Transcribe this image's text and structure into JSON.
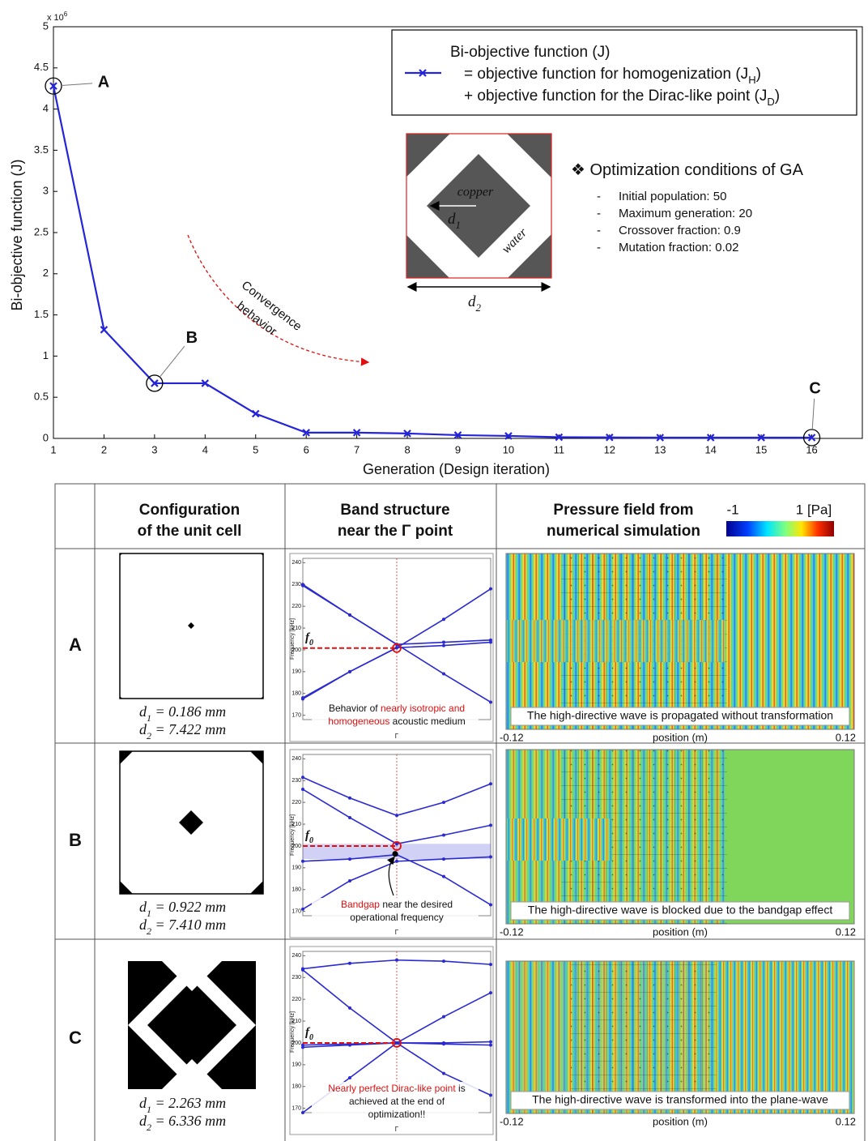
{
  "chart_data": {
    "type": "line",
    "x": [
      1,
      2,
      3,
      4,
      5,
      6,
      7,
      8,
      9,
      10,
      11,
      12,
      13,
      14,
      15,
      16
    ],
    "series": [
      {
        "name": "Bi-objective function (J)",
        "color": "#2424d8",
        "values": [
          4.28,
          1.32,
          0.67,
          0.67,
          0.3,
          0.07,
          0.07,
          0.06,
          0.04,
          0.03,
          0.015,
          0.012,
          0.01,
          0.01,
          0.01,
          0.01
        ]
      }
    ],
    "xlim": [
      1,
      17
    ],
    "xticks": [
      1,
      2,
      3,
      4,
      5,
      6,
      7,
      8,
      9,
      10,
      11,
      12,
      13,
      14,
      15,
      16
    ],
    "ylim": [
      0,
      5
    ],
    "yticks": [
      0,
      0.5,
      1,
      1.5,
      2,
      2.5,
      3,
      3.5,
      4,
      4.5,
      5
    ],
    "y_multiplier": {
      "base": "x 10",
      "exponent": "6"
    },
    "xlabel": "Generation (Design iteration)",
    "ylabel": "Bi-objective function (J)",
    "legend_lines": [
      [
        {
          "text": "= objective function for homogenization (J"
        },
        {
          "text": "H",
          "sub": true
        },
        {
          "text": ")"
        }
      ],
      [
        {
          "text": "+ objective function for the Dirac-like point (J"
        },
        {
          "text": "D",
          "sub": true
        },
        {
          "text": ")"
        }
      ]
    ],
    "annotations": [
      {
        "text": "A",
        "x": 1
      },
      {
        "text": "B",
        "x": 3
      },
      {
        "text": "C",
        "x": 16
      }
    ],
    "arrow_label": [
      "Convergence",
      "behavior"
    ]
  },
  "inset": {
    "inner_material": "copper",
    "outer_material": "water",
    "d1": [
      {
        "text": "d"
      },
      {
        "text": "1",
        "sub": true
      }
    ],
    "d2": [
      {
        "text": "d"
      },
      {
        "text": "2",
        "sub": true
      }
    ]
  },
  "conditions": {
    "bullet": "❖",
    "title": "Optimization conditions of GA",
    "dash": "-",
    "items": [
      "Initial population: 50",
      "Maximum generation: 20",
      "Crossover fraction: 0.9",
      "Mutation fraction: 0.02"
    ]
  },
  "table": {
    "header": [
      [
        "Configuration",
        "of the unit cell"
      ],
      [
        "Band structure",
        "near the Γ point"
      ],
      [
        "Pressure field from",
        "numerical simulation"
      ]
    ],
    "colorbar": {
      "min_label": "-1",
      "max_label": "1 [Pa]"
    },
    "rows": [
      {
        "label": "A",
        "d1": [
          {
            "text": "d"
          },
          {
            "text": "1",
            "sub": true
          },
          {
            "text": " = 0.186 mm"
          }
        ],
        "d2": [
          {
            "text": "d"
          },
          {
            "text": "2",
            "sub": true
          },
          {
            "text": " = 7.422 mm"
          }
        ],
        "band": {
          "ylabel": "Frequency [kHz]",
          "xlabel": "Γ",
          "ylim": [
            168,
            242
          ],
          "yticks": [
            170,
            180,
            190,
            200,
            210,
            220,
            230,
            240
          ],
          "f0": {
            "label": [
              {
                "text": "f"
              },
              {
                "text": "0",
                "sub": true
              }
            ],
            "value": 200.8
          },
          "branches": [
            [
              229.5,
              216,
              202.5,
              189,
              176
            ],
            [
              178,
              190,
              201,
              214,
              228
            ],
            [
              230,
              216,
              202.5,
              203.5,
              204.5
            ],
            [
              177.5,
              190,
              201,
              202,
              203.5
            ]
          ],
          "note": [
            [
              {
                "text": "Behavior of "
              },
              {
                "text": "nearly isotropic and",
                "color": "#e01010"
              }
            ],
            [
              {
                "text": "homogeneous",
                "color": "#e01010"
              },
              {
                "text": " acoustic medium"
              }
            ]
          ]
        },
        "caption": "The high-directive wave is propagated without transformation",
        "position_axis": {
          "min": "-0.12",
          "label": "position (m)",
          "max": "0.12"
        }
      },
      {
        "label": "B",
        "d1": [
          {
            "text": "d"
          },
          {
            "text": "1",
            "sub": true
          },
          {
            "text": " = 0.922 mm"
          }
        ],
        "d2": [
          {
            "text": "d"
          },
          {
            "text": "2",
            "sub": true
          },
          {
            "text": " = 7.410 mm"
          }
        ],
        "band": {
          "ylabel": "Frequency [kHz]",
          "xlabel": "Γ",
          "ylim": [
            168,
            242
          ],
          "yticks": [
            170,
            180,
            190,
            200,
            210,
            220,
            230,
            240
          ],
          "f0": {
            "label": [
              {
                "text": "f"
              },
              {
                "text": "0",
                "sub": true
              }
            ],
            "value": 200
          },
          "bandgap": [
            194,
            201
          ],
          "branches": [
            [
              231.5,
              222,
              214,
              220,
              228.5
            ],
            [
              226,
              213,
              201,
              205,
              209.5
            ],
            [
              193,
              194,
              196,
              186,
              173
            ],
            [
              171,
              184,
              193,
              194,
              195
            ]
          ],
          "note": [
            [
              {
                "text": "Bandgap",
                "color": "#e01010"
              },
              {
                "text": " near the desired"
              }
            ],
            [
              {
                "text": "operational frequency"
              }
            ]
          ]
        },
        "caption": "The high-directive wave is blocked due to the bandgap effect",
        "position_axis": {
          "min": "-0.12",
          "label": "position (m)",
          "max": "0.12"
        }
      },
      {
        "label": "C",
        "d1": [
          {
            "text": "d"
          },
          {
            "text": "1",
            "sub": true
          },
          {
            "text": " = 2.263 mm"
          }
        ],
        "d2": [
          {
            "text": "d"
          },
          {
            "text": "2",
            "sub": true
          },
          {
            "text": " = 6.336 mm"
          }
        ],
        "band": {
          "ylabel": "Frequency [kHz]",
          "xlabel": "Γ",
          "ylim": [
            168,
            242
          ],
          "yticks": [
            170,
            180,
            190,
            200,
            210,
            220,
            230,
            240
          ],
          "f0": {
            "label": [
              {
                "text": "f"
              },
              {
                "text": "0",
                "sub": true
              }
            ],
            "value": 200
          },
          "branches": [
            [
              234,
              236.5,
              238,
              237.5,
              236
            ],
            [
              233.5,
              216,
              200,
              186,
              176
            ],
            [
              168,
              184,
              200,
              212,
              223
            ],
            [
              199,
              199.5,
              200,
              200,
              200.5
            ],
            [
              198,
              199,
              200,
              199.5,
              199
            ]
          ],
          "note": [
            [
              {
                "text": "Nearly perfect Dirac-like point",
                "color": "#e01010"
              },
              {
                "text": " is"
              }
            ],
            [
              {
                "text": "achieved at the end of"
              }
            ],
            [
              {
                "text": "optimization!!"
              }
            ]
          ]
        },
        "caption": "The high-directive wave is transformed into the plane-wave",
        "position_axis": {
          "min": "-0.12",
          "label": "position (m)",
          "max": "0.12"
        }
      }
    ]
  }
}
